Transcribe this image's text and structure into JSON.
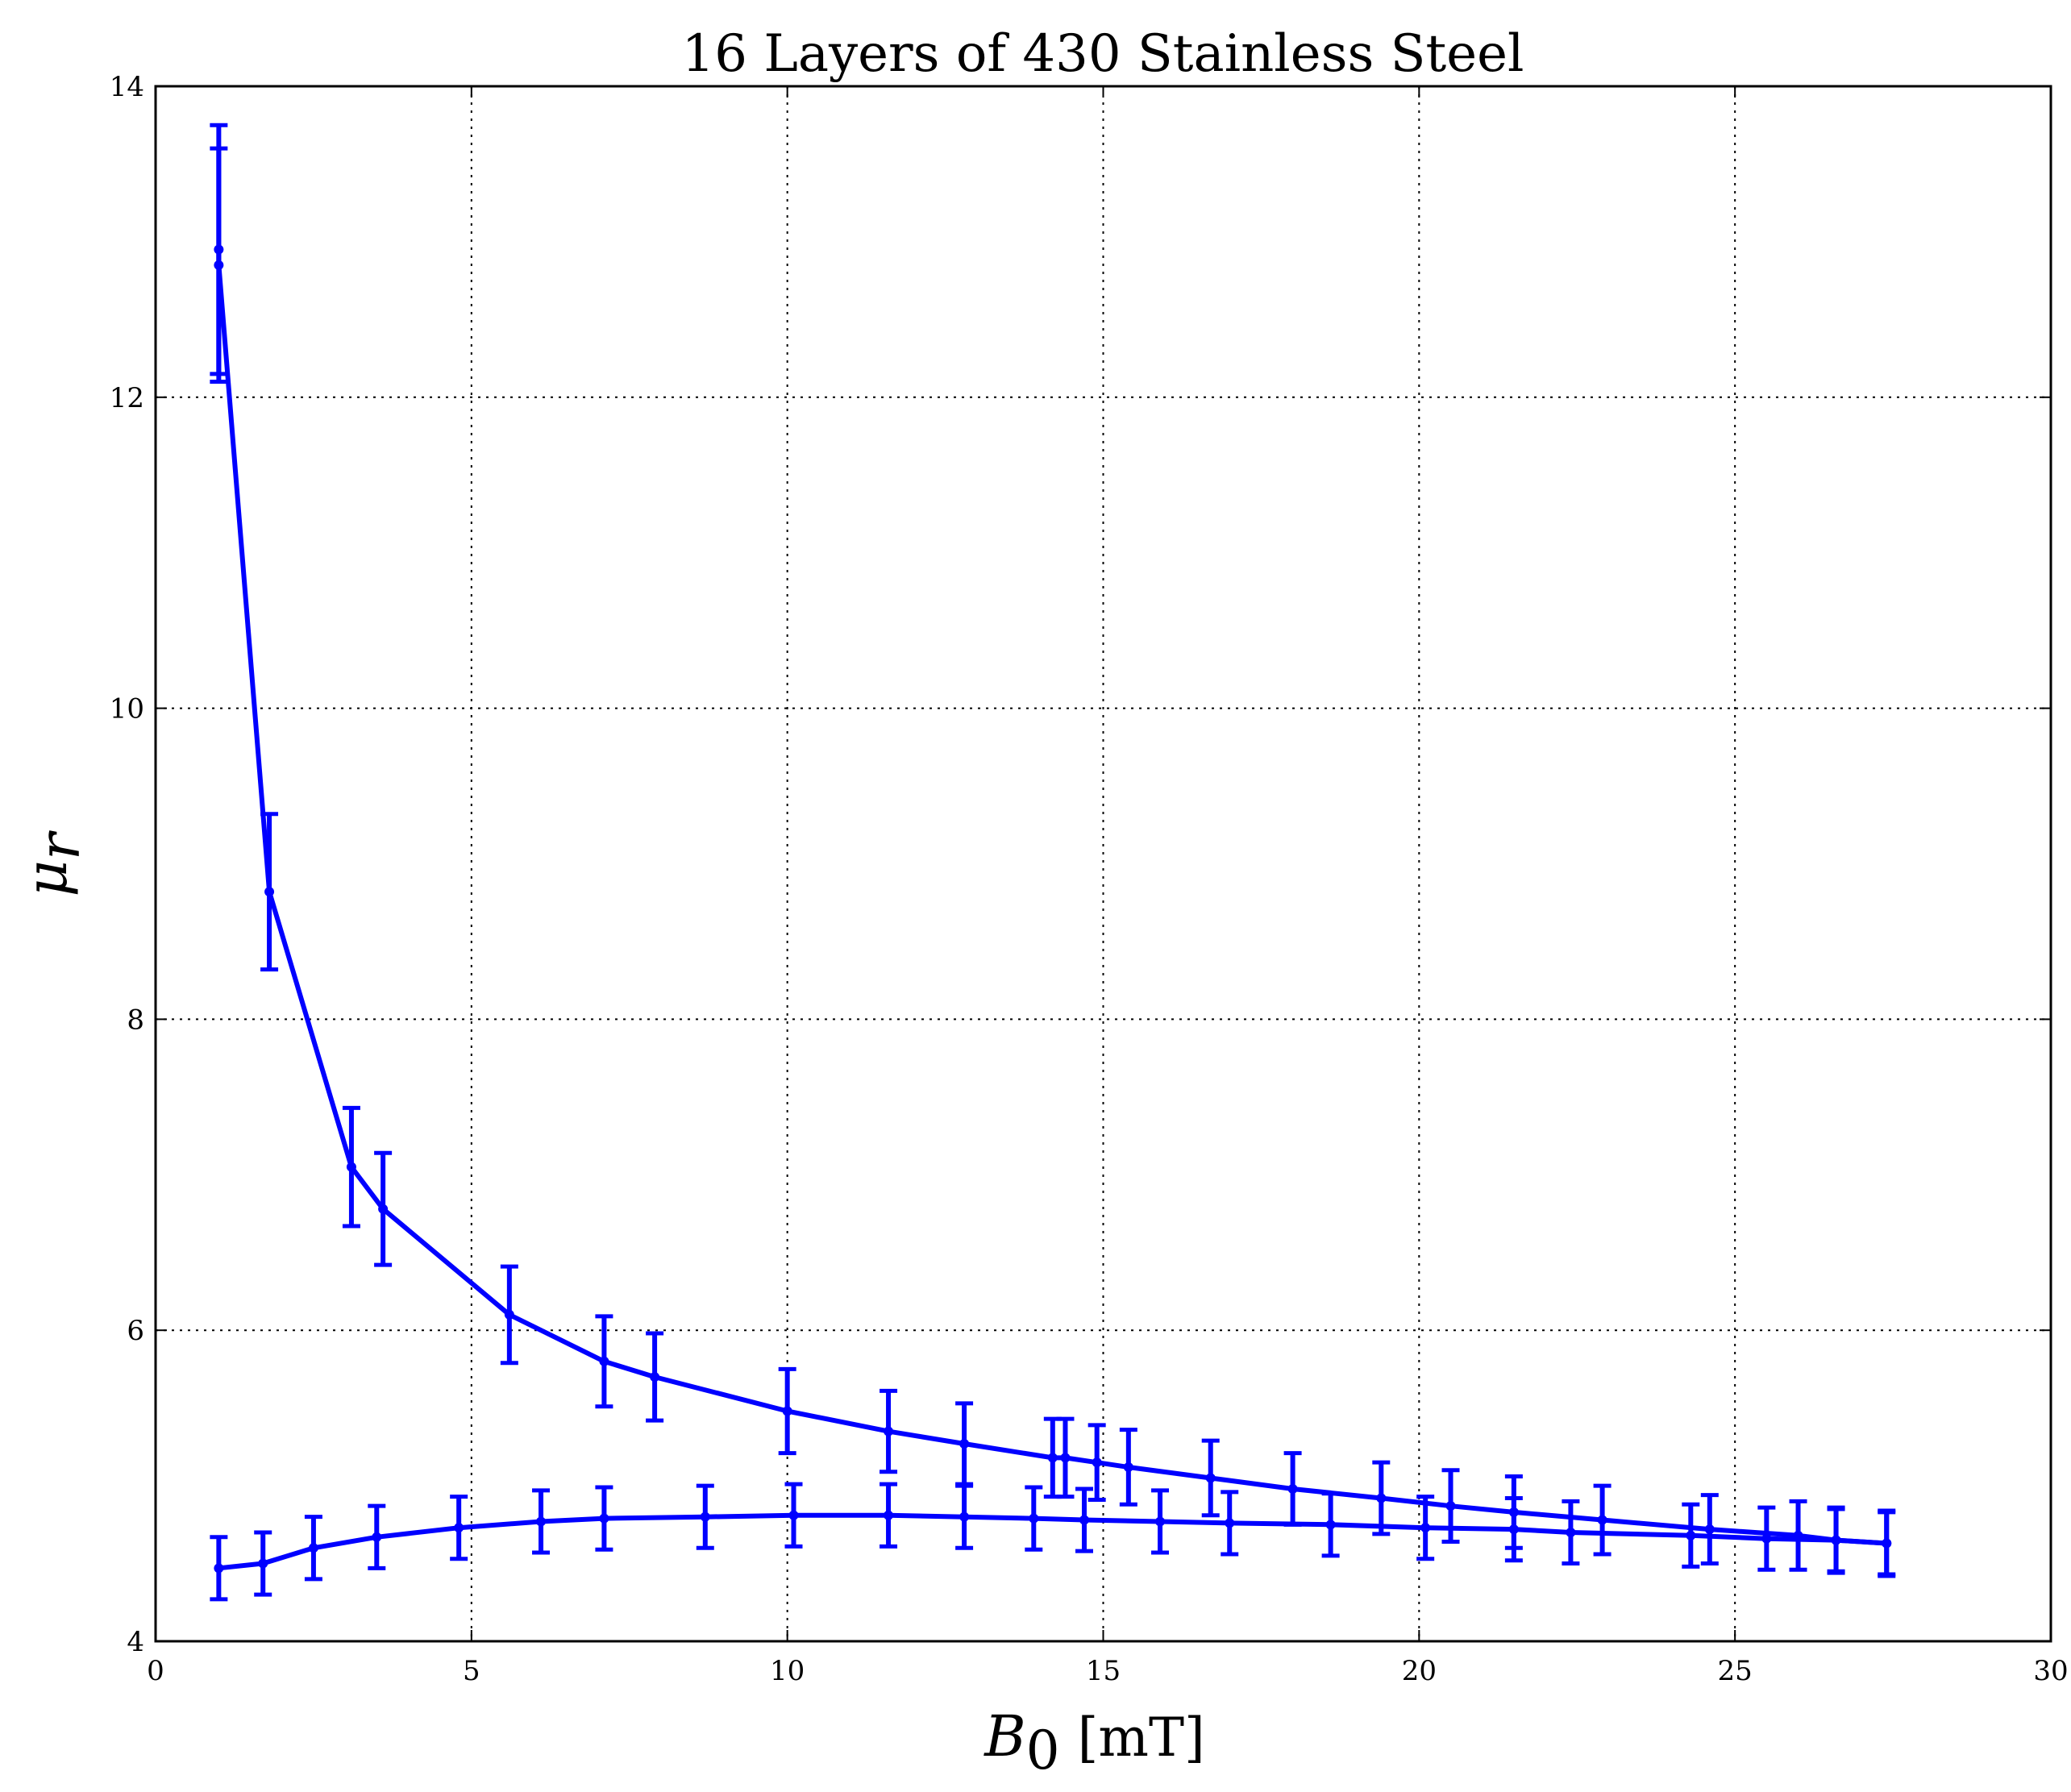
{
  "chart_data": {
    "type": "line",
    "title": "16 Layers of 430 Stainless Steel",
    "xlabel": "B0 [mT]",
    "ylabel": "μr",
    "xlabel_parts": {
      "symbol": "B",
      "subscript": "0",
      "unit": "[mT]"
    },
    "ylabel_parts": {
      "symbol": "μ",
      "subscript": "r"
    },
    "xlim": [
      0,
      30
    ],
    "ylim": [
      4,
      14
    ],
    "xticks": [
      0,
      5,
      10,
      15,
      20,
      25,
      30
    ],
    "yticks": [
      4,
      6,
      8,
      10,
      12,
      14
    ],
    "grid": true,
    "line_color": "#0000ff",
    "series": [
      {
        "x": [
          1.0,
          1.0,
          1.8,
          3.1,
          3.6,
          5.6,
          7.1,
          7.9,
          10.0,
          11.6,
          12.8,
          14.2,
          14.4,
          14.9,
          15.4,
          16.7,
          18.0,
          19.4,
          20.5,
          21.5,
          22.9,
          24.6,
          26.0,
          26.6,
          27.4
        ],
        "y": [
          12.95,
          12.85,
          8.82,
          7.05,
          6.78,
          6.1,
          5.8,
          5.7,
          5.48,
          5.35,
          5.27,
          5.18,
          5.18,
          5.15,
          5.12,
          5.05,
          4.98,
          4.92,
          4.87,
          4.83,
          4.78,
          4.72,
          4.68,
          4.65,
          4.63
        ],
        "err": [
          0.8,
          0.75,
          0.5,
          0.38,
          0.36,
          0.31,
          0.29,
          0.28,
          0.27,
          0.26,
          0.26,
          0.25,
          0.25,
          0.24,
          0.24,
          0.24,
          0.23,
          0.23,
          0.23,
          0.23,
          0.22,
          0.22,
          0.22,
          0.21,
          0.21
        ]
      },
      {
        "x": [
          1.0,
          1.7,
          2.5,
          3.5,
          4.8,
          6.1,
          7.1,
          8.7,
          10.1,
          11.6,
          12.8,
          13.9,
          14.7,
          15.9,
          17.0,
          18.6,
          20.1,
          21.5,
          22.4,
          24.3,
          25.5,
          26.6,
          27.4
        ],
        "y": [
          4.47,
          4.5,
          4.6,
          4.67,
          4.73,
          4.77,
          4.79,
          4.8,
          4.81,
          4.81,
          4.8,
          4.79,
          4.78,
          4.77,
          4.76,
          4.75,
          4.73,
          4.72,
          4.7,
          4.68,
          4.66,
          4.65,
          4.63
        ]
      }
    ]
  }
}
